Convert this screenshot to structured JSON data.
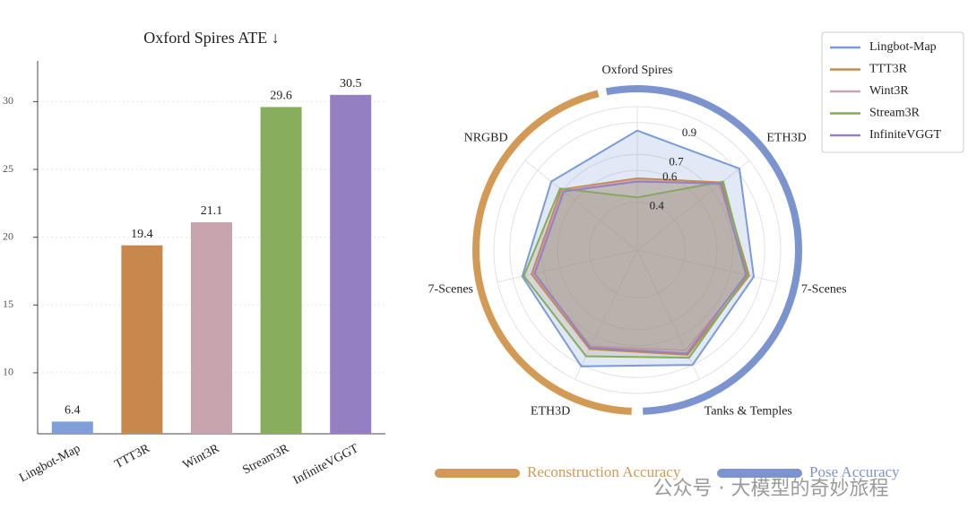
{
  "chart_data": [
    {
      "type": "bar",
      "title": "Oxford Spires ATE ↓",
      "categories": [
        "Lingbot-Map",
        "TTT3R",
        "Wint3R",
        "Stream3R",
        "InfiniteVGGT"
      ],
      "values": [
        6.4,
        19.4,
        21.1,
        29.6,
        30.5
      ],
      "colors": [
        "#7f9fd8",
        "#c9884b",
        "#c8a4ae",
        "#88ad5c",
        "#957fc3"
      ],
      "ylim": [
        5.5,
        33
      ],
      "yticks": [
        10,
        15,
        20,
        25,
        30
      ],
      "grid": true
    },
    {
      "type": "radar",
      "categories": [
        "Oxford Spires",
        "ETH3D",
        "7-Scenes",
        "Tanks & Temples",
        "ETH3D",
        "7-Scenes",
        "NRGBD"
      ],
      "rlim": [
        0.1,
        1.0
      ],
      "rticks": [
        0.4,
        0.6,
        0.7,
        0.9
      ],
      "series": [
        {
          "name": "Lingbot-Map",
          "color": "#7b9bd6",
          "values": [
            0.85,
            0.92,
            0.85,
            0.9,
            0.91,
            0.84,
            0.79
          ]
        },
        {
          "name": "TTT3R",
          "color": "#c9884b",
          "values": [
            0.55,
            0.78,
            0.82,
            0.83,
            0.79,
            0.78,
            0.71
          ]
        },
        {
          "name": "Wint3R",
          "color": "#c8a4ae",
          "values": [
            0.54,
            0.76,
            0.81,
            0.8,
            0.77,
            0.77,
            0.7
          ]
        },
        {
          "name": "Stream3R",
          "color": "#84ad5a",
          "values": [
            0.43,
            0.79,
            0.81,
            0.85,
            0.84,
            0.83,
            0.72
          ]
        },
        {
          "name": "InfiniteVGGT",
          "color": "#9581c4",
          "values": [
            0.53,
            0.77,
            0.8,
            0.82,
            0.78,
            0.76,
            0.69
          ]
        }
      ],
      "groups": [
        {
          "name": "Reconstruction Accuracy",
          "color": "#d39a55"
        },
        {
          "name": "Pose Accuracy",
          "color": "#7b93cf"
        }
      ]
    }
  ],
  "watermark": "公众号 · 大模型的奇妙旅程"
}
